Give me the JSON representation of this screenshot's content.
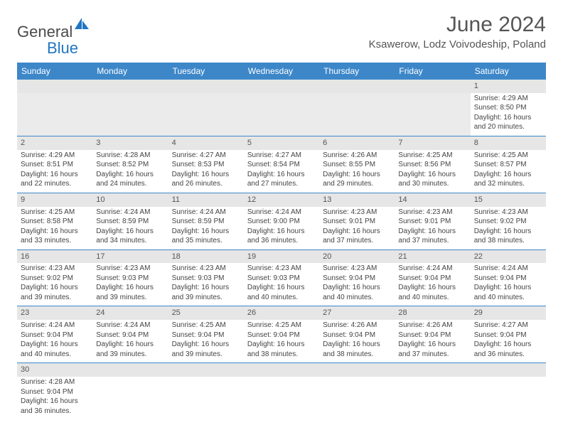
{
  "logo": {
    "text1": "General",
    "text2": "Blue"
  },
  "title": "June 2024",
  "location": "Ksawerow, Lodz Voivodeship, Poland",
  "colors": {
    "header_bg": "#3d87c9",
    "header_text": "#ffffff",
    "shade_bg": "#e6e6e6",
    "border": "#3d87c9",
    "text": "#444444",
    "logo_blue": "#2176c1"
  },
  "day_headers": [
    "Sunday",
    "Monday",
    "Tuesday",
    "Wednesday",
    "Thursday",
    "Friday",
    "Saturday"
  ],
  "weeks": [
    [
      null,
      null,
      null,
      null,
      null,
      null,
      {
        "n": "1",
        "sunrise": "Sunrise: 4:29 AM",
        "sunset": "Sunset: 8:50 PM",
        "day1": "Daylight: 16 hours",
        "day2": "and 20 minutes."
      }
    ],
    [
      {
        "n": "2",
        "sunrise": "Sunrise: 4:29 AM",
        "sunset": "Sunset: 8:51 PM",
        "day1": "Daylight: 16 hours",
        "day2": "and 22 minutes."
      },
      {
        "n": "3",
        "sunrise": "Sunrise: 4:28 AM",
        "sunset": "Sunset: 8:52 PM",
        "day1": "Daylight: 16 hours",
        "day2": "and 24 minutes."
      },
      {
        "n": "4",
        "sunrise": "Sunrise: 4:27 AM",
        "sunset": "Sunset: 8:53 PM",
        "day1": "Daylight: 16 hours",
        "day2": "and 26 minutes."
      },
      {
        "n": "5",
        "sunrise": "Sunrise: 4:27 AM",
        "sunset": "Sunset: 8:54 PM",
        "day1": "Daylight: 16 hours",
        "day2": "and 27 minutes."
      },
      {
        "n": "6",
        "sunrise": "Sunrise: 4:26 AM",
        "sunset": "Sunset: 8:55 PM",
        "day1": "Daylight: 16 hours",
        "day2": "and 29 minutes."
      },
      {
        "n": "7",
        "sunrise": "Sunrise: 4:25 AM",
        "sunset": "Sunset: 8:56 PM",
        "day1": "Daylight: 16 hours",
        "day2": "and 30 minutes."
      },
      {
        "n": "8",
        "sunrise": "Sunrise: 4:25 AM",
        "sunset": "Sunset: 8:57 PM",
        "day1": "Daylight: 16 hours",
        "day2": "and 32 minutes."
      }
    ],
    [
      {
        "n": "9",
        "sunrise": "Sunrise: 4:25 AM",
        "sunset": "Sunset: 8:58 PM",
        "day1": "Daylight: 16 hours",
        "day2": "and 33 minutes."
      },
      {
        "n": "10",
        "sunrise": "Sunrise: 4:24 AM",
        "sunset": "Sunset: 8:59 PM",
        "day1": "Daylight: 16 hours",
        "day2": "and 34 minutes."
      },
      {
        "n": "11",
        "sunrise": "Sunrise: 4:24 AM",
        "sunset": "Sunset: 8:59 PM",
        "day1": "Daylight: 16 hours",
        "day2": "and 35 minutes."
      },
      {
        "n": "12",
        "sunrise": "Sunrise: 4:24 AM",
        "sunset": "Sunset: 9:00 PM",
        "day1": "Daylight: 16 hours",
        "day2": "and 36 minutes."
      },
      {
        "n": "13",
        "sunrise": "Sunrise: 4:23 AM",
        "sunset": "Sunset: 9:01 PM",
        "day1": "Daylight: 16 hours",
        "day2": "and 37 minutes."
      },
      {
        "n": "14",
        "sunrise": "Sunrise: 4:23 AM",
        "sunset": "Sunset: 9:01 PM",
        "day1": "Daylight: 16 hours",
        "day2": "and 37 minutes."
      },
      {
        "n": "15",
        "sunrise": "Sunrise: 4:23 AM",
        "sunset": "Sunset: 9:02 PM",
        "day1": "Daylight: 16 hours",
        "day2": "and 38 minutes."
      }
    ],
    [
      {
        "n": "16",
        "sunrise": "Sunrise: 4:23 AM",
        "sunset": "Sunset: 9:02 PM",
        "day1": "Daylight: 16 hours",
        "day2": "and 39 minutes."
      },
      {
        "n": "17",
        "sunrise": "Sunrise: 4:23 AM",
        "sunset": "Sunset: 9:03 PM",
        "day1": "Daylight: 16 hours",
        "day2": "and 39 minutes."
      },
      {
        "n": "18",
        "sunrise": "Sunrise: 4:23 AM",
        "sunset": "Sunset: 9:03 PM",
        "day1": "Daylight: 16 hours",
        "day2": "and 39 minutes."
      },
      {
        "n": "19",
        "sunrise": "Sunrise: 4:23 AM",
        "sunset": "Sunset: 9:03 PM",
        "day1": "Daylight: 16 hours",
        "day2": "and 40 minutes."
      },
      {
        "n": "20",
        "sunrise": "Sunrise: 4:23 AM",
        "sunset": "Sunset: 9:04 PM",
        "day1": "Daylight: 16 hours",
        "day2": "and 40 minutes."
      },
      {
        "n": "21",
        "sunrise": "Sunrise: 4:24 AM",
        "sunset": "Sunset: 9:04 PM",
        "day1": "Daylight: 16 hours",
        "day2": "and 40 minutes."
      },
      {
        "n": "22",
        "sunrise": "Sunrise: 4:24 AM",
        "sunset": "Sunset: 9:04 PM",
        "day1": "Daylight: 16 hours",
        "day2": "and 40 minutes."
      }
    ],
    [
      {
        "n": "23",
        "sunrise": "Sunrise: 4:24 AM",
        "sunset": "Sunset: 9:04 PM",
        "day1": "Daylight: 16 hours",
        "day2": "and 40 minutes."
      },
      {
        "n": "24",
        "sunrise": "Sunrise: 4:24 AM",
        "sunset": "Sunset: 9:04 PM",
        "day1": "Daylight: 16 hours",
        "day2": "and 39 minutes."
      },
      {
        "n": "25",
        "sunrise": "Sunrise: 4:25 AM",
        "sunset": "Sunset: 9:04 PM",
        "day1": "Daylight: 16 hours",
        "day2": "and 39 minutes."
      },
      {
        "n": "26",
        "sunrise": "Sunrise: 4:25 AM",
        "sunset": "Sunset: 9:04 PM",
        "day1": "Daylight: 16 hours",
        "day2": "and 38 minutes."
      },
      {
        "n": "27",
        "sunrise": "Sunrise: 4:26 AM",
        "sunset": "Sunset: 9:04 PM",
        "day1": "Daylight: 16 hours",
        "day2": "and 38 minutes."
      },
      {
        "n": "28",
        "sunrise": "Sunrise: 4:26 AM",
        "sunset": "Sunset: 9:04 PM",
        "day1": "Daylight: 16 hours",
        "day2": "and 37 minutes."
      },
      {
        "n": "29",
        "sunrise": "Sunrise: 4:27 AM",
        "sunset": "Sunset: 9:04 PM",
        "day1": "Daylight: 16 hours",
        "day2": "and 36 minutes."
      }
    ],
    [
      {
        "n": "30",
        "sunrise": "Sunrise: 4:28 AM",
        "sunset": "Sunset: 9:04 PM",
        "day1": "Daylight: 16 hours",
        "day2": "and 36 minutes."
      },
      null,
      null,
      null,
      null,
      null,
      null
    ]
  ]
}
